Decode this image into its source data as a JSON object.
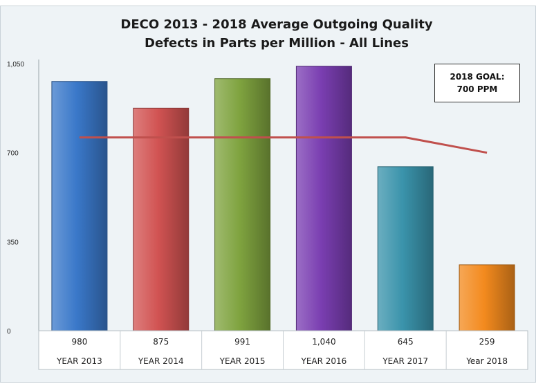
{
  "chart_data": {
    "type": "bar",
    "title_line1": "DECO 2013 - 2018  Average Outgoing Quality",
    "title_line2": "Defects in Parts per Million - All Lines",
    "categories": [
      "YEAR 2013",
      "YEAR 2014",
      "YEAR 2015",
      "YEAR 2016",
      "YEAR 2017",
      "Year 2018"
    ],
    "value_labels": [
      "980",
      "875",
      "991",
      "1,040",
      "645",
      "259"
    ],
    "values": [
      980,
      875,
      991,
      1040,
      645,
      259
    ],
    "bar_colors": [
      "#3a78c9",
      "#d15352",
      "#7fa33f",
      "#7a3eb1",
      "#3a93ab",
      "#f38a1e"
    ],
    "goal_line": {
      "values": [
        760,
        760,
        760,
        760,
        760,
        700
      ],
      "color": "#c0504d"
    },
    "goal_box": {
      "line1": "2018 GOAL:",
      "line2": "700 PPM"
    },
    "ylim": [
      0,
      1050
    ],
    "yticks": [
      0,
      350,
      700,
      1050
    ],
    "ytick_labels": [
      "0",
      "350",
      "700",
      "1,050"
    ],
    "grid": false,
    "legend": "none"
  }
}
